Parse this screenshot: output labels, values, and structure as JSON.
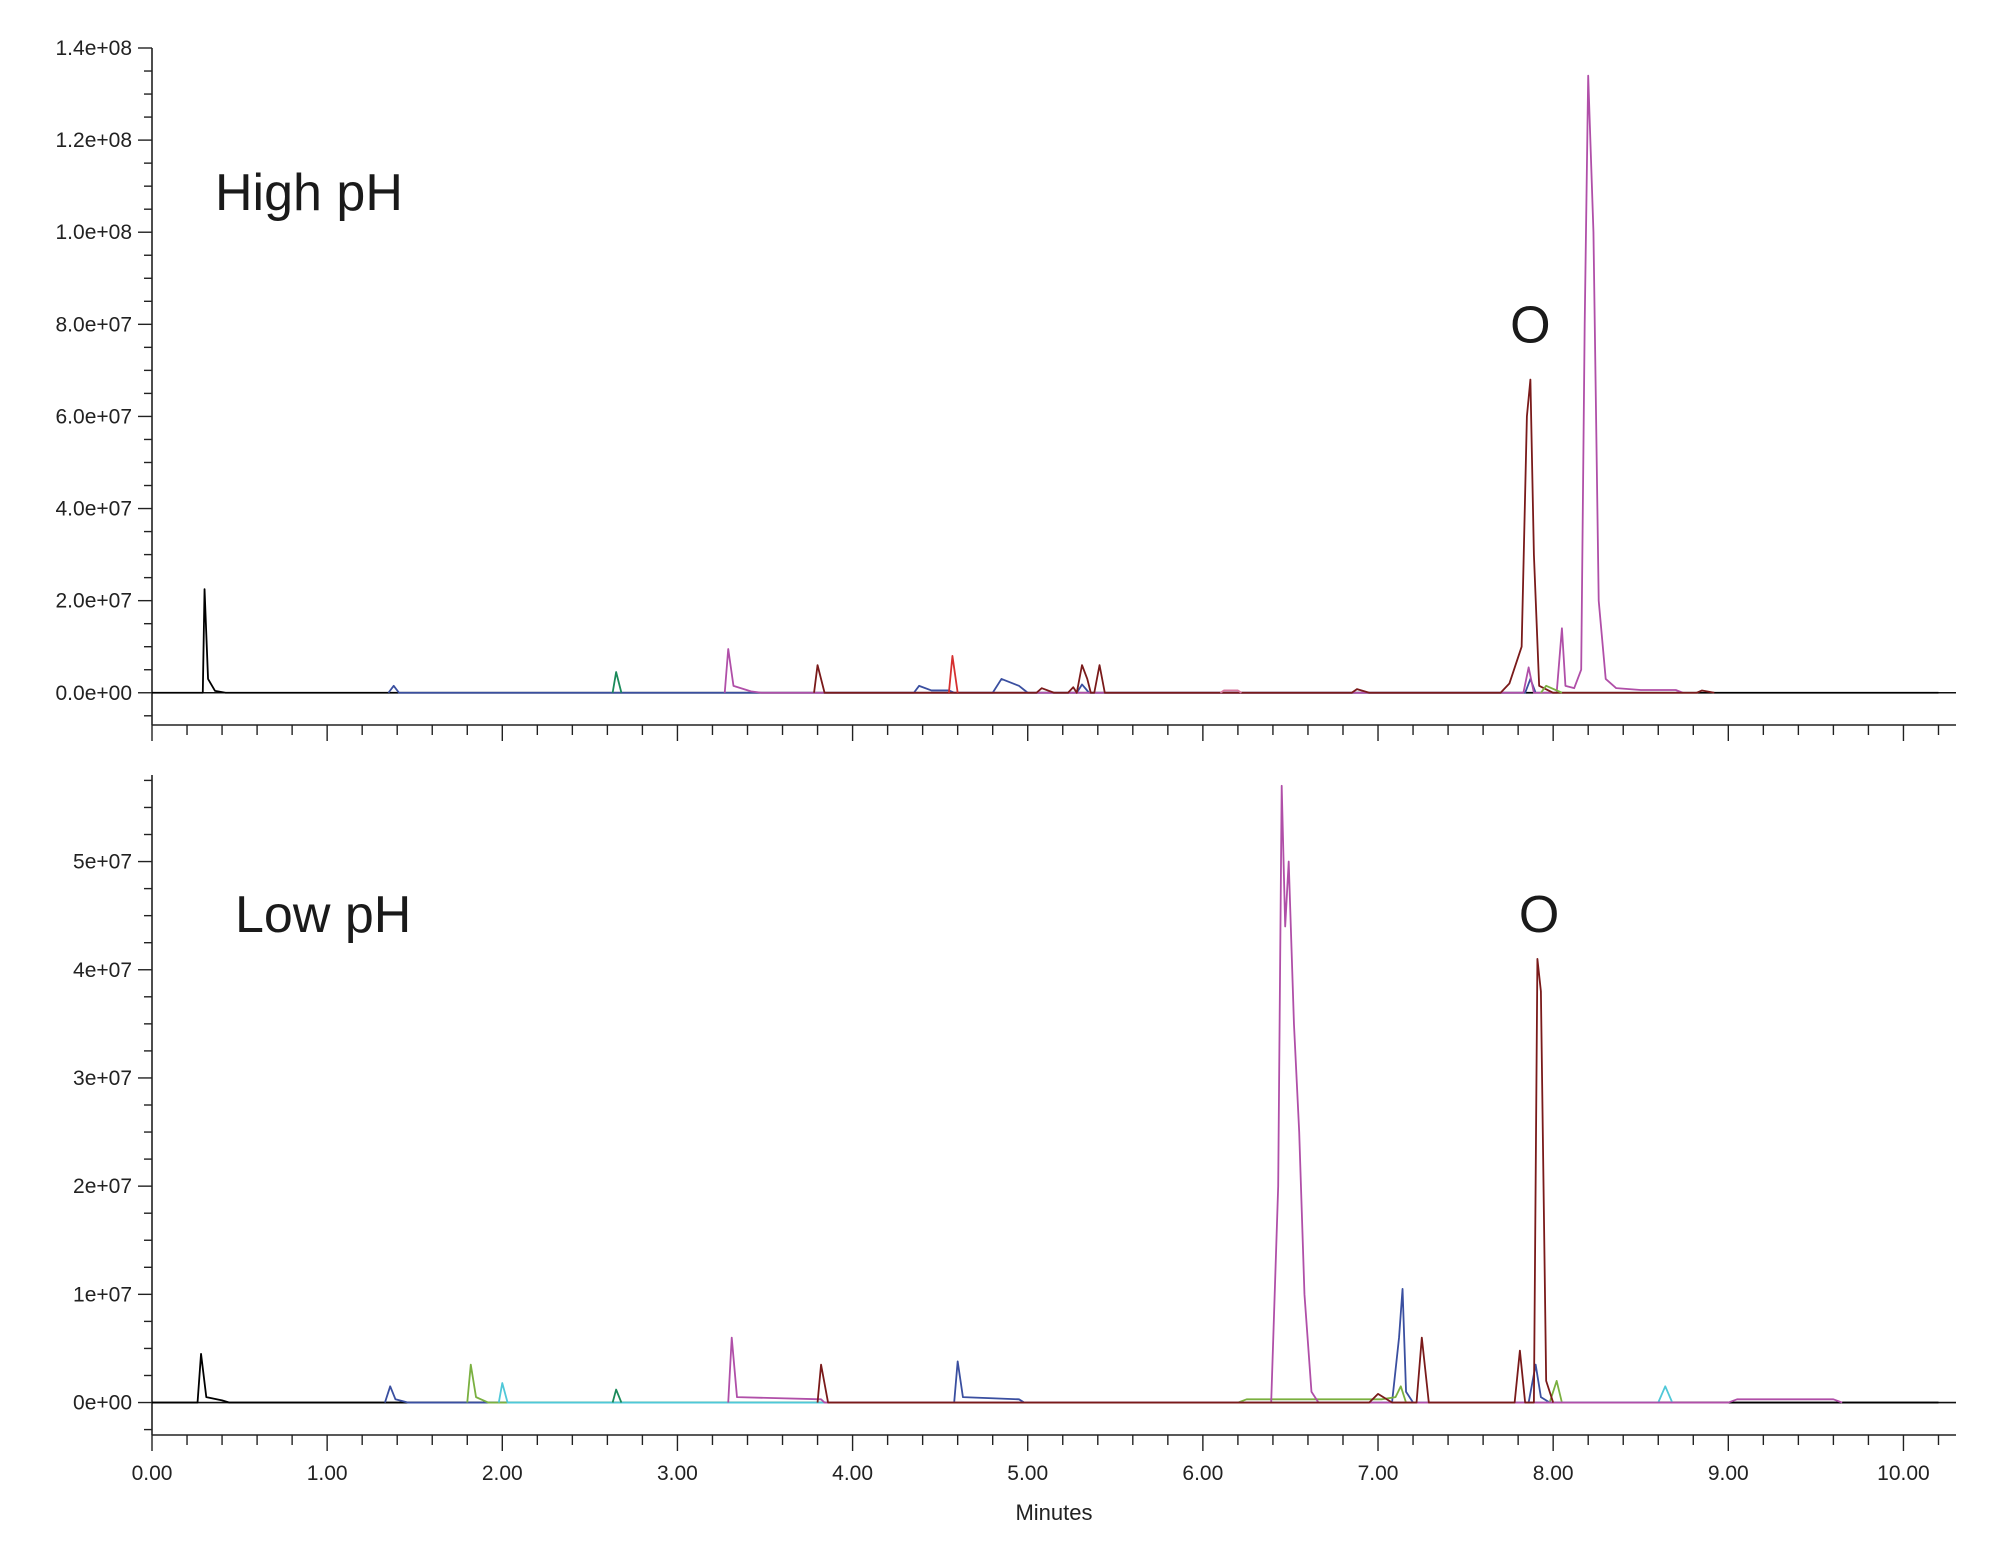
{
  "chart_data": [
    {
      "type": "line",
      "panel_label": "High pH",
      "ylim": [
        -7000000,
        140000000
      ],
      "y_ticks": [
        0,
        20000000,
        40000000,
        60000000,
        80000000,
        100000000,
        120000000,
        140000000
      ],
      "y_tick_labels": [
        "0.0e+00",
        "2.0e+07",
        "4.0e+07",
        "6.0e+07",
        "8.0e+07",
        "1.0e+08",
        "1.2e+08",
        "1.4e+08"
      ],
      "xlim": [
        0,
        10.3
      ],
      "annotations": [
        {
          "text": "O",
          "x": 7.87,
          "y": 76000000
        }
      ],
      "series": [
        {
          "color": "#000000",
          "points": [
            [
              0,
              0
            ],
            [
              0.29,
              0
            ],
            [
              0.3,
              22500000
            ],
            [
              0.32,
              3000000
            ],
            [
              0.36,
              400000
            ],
            [
              0.42,
              0
            ],
            [
              10.2,
              0
            ]
          ]
        },
        {
          "color": "#3a4fa0",
          "points": [
            [
              1.35,
              0
            ],
            [
              1.38,
              1500000
            ],
            [
              1.41,
              0
            ],
            [
              4.35,
              0
            ],
            [
              4.38,
              1500000
            ],
            [
              4.45,
              500000
            ],
            [
              4.55,
              500000
            ],
            [
              4.58,
              0
            ],
            [
              4.8,
              0
            ],
            [
              4.85,
              3000000
            ],
            [
              4.95,
              1500000
            ],
            [
              5.0,
              0
            ],
            [
              5.28,
              0
            ],
            [
              5.31,
              1800000
            ],
            [
              5.35,
              0
            ],
            [
              7.84,
              0
            ],
            [
              7.87,
              3000000
            ],
            [
              7.9,
              0
            ]
          ]
        },
        {
          "color": "#1a8a5a",
          "points": [
            [
              2.63,
              0
            ],
            [
              2.65,
              4500000
            ],
            [
              2.68,
              0
            ]
          ]
        },
        {
          "color": "#b04fa8",
          "points": [
            [
              3.27,
              0
            ],
            [
              3.29,
              9500000
            ],
            [
              3.32,
              1500000
            ],
            [
              3.42,
              300000
            ],
            [
              3.48,
              0
            ],
            [
              7.83,
              0
            ],
            [
              7.86,
              5500000
            ],
            [
              7.89,
              0
            ],
            [
              8.02,
              0
            ],
            [
              8.05,
              14000000
            ],
            [
              8.07,
              1500000
            ],
            [
              8.12,
              1000000
            ],
            [
              8.16,
              5000000
            ],
            [
              8.18,
              80000000
            ],
            [
              8.2,
              134000000
            ],
            [
              8.23,
              100000000
            ],
            [
              8.26,
              20000000
            ],
            [
              8.3,
              3000000
            ],
            [
              8.36,
              1000000
            ],
            [
              8.5,
              600000
            ],
            [
              8.7,
              600000
            ],
            [
              8.74,
              0
            ]
          ]
        },
        {
          "color": "#7a1a1a",
          "points": [
            [
              3.78,
              0
            ],
            [
              3.8,
              6000000
            ],
            [
              3.84,
              0
            ],
            [
              5.05,
              0
            ],
            [
              5.08,
              1000000
            ],
            [
              5.15,
              0
            ],
            [
              5.23,
              0
            ],
            [
              5.26,
              1200000
            ],
            [
              5.28,
              0
            ],
            [
              5.31,
              6000000
            ],
            [
              5.34,
              3000000
            ],
            [
              5.36,
              0
            ],
            [
              5.38,
              0
            ],
            [
              5.41,
              6000000
            ],
            [
              5.44,
              0
            ],
            [
              6.85,
              0
            ],
            [
              6.88,
              800000
            ],
            [
              6.95,
              0
            ],
            [
              7.7,
              0
            ],
            [
              7.75,
              2000000
            ],
            [
              7.82,
              10000000
            ],
            [
              7.85,
              60000000
            ],
            [
              7.87,
              68000000
            ],
            [
              7.89,
              30000000
            ],
            [
              7.92,
              1500000
            ],
            [
              8.0,
              0
            ],
            [
              8.82,
              0
            ],
            [
              8.85,
              500000
            ],
            [
              8.92,
              0
            ]
          ]
        },
        {
          "color": "#d63030",
          "points": [
            [
              4.55,
              0
            ],
            [
              4.57,
              8000000
            ],
            [
              4.6,
              0
            ]
          ]
        },
        {
          "color": "#d87aa0",
          "points": [
            [
              6.1,
              0
            ],
            [
              6.12,
              500000
            ],
            [
              6.2,
              500000
            ],
            [
              6.22,
              0
            ]
          ]
        },
        {
          "color": "#7ab040",
          "points": [
            [
              7.93,
              0
            ],
            [
              7.96,
              1500000
            ],
            [
              8.05,
              0
            ]
          ]
        }
      ]
    },
    {
      "type": "line",
      "panel_label": "Low pH",
      "ylim": [
        -3000000,
        58000000
      ],
      "y_ticks": [
        0,
        10000000,
        20000000,
        30000000,
        40000000,
        50000000
      ],
      "y_tick_labels": [
        "0e+00",
        "1e+07",
        "2e+07",
        "3e+07",
        "4e+07",
        "5e+07"
      ],
      "xlim": [
        0,
        10.3
      ],
      "x_ticks": [
        0,
        1,
        2,
        3,
        4,
        5,
        6,
        7,
        8,
        9,
        10
      ],
      "x_tick_labels": [
        "0.00",
        "1.00",
        "2.00",
        "3.00",
        "4.00",
        "5.00",
        "6.00",
        "7.00",
        "8.00",
        "9.00",
        "10.00"
      ],
      "xlabel": "Minutes",
      "annotations": [
        {
          "text": "O",
          "x": 7.92,
          "y": 43500000
        }
      ],
      "series": [
        {
          "color": "#000000",
          "points": [
            [
              0,
              0
            ],
            [
              0.26,
              0
            ],
            [
              0.28,
              4500000
            ],
            [
              0.31,
              500000
            ],
            [
              0.4,
              200000
            ],
            [
              0.44,
              0
            ],
            [
              10.2,
              0
            ]
          ]
        },
        {
          "color": "#3a4fa0",
          "points": [
            [
              1.33,
              0
            ],
            [
              1.36,
              1500000
            ],
            [
              1.39,
              300000
            ],
            [
              1.46,
              0
            ],
            [
              4.58,
              0
            ],
            [
              4.6,
              3800000
            ],
            [
              4.63,
              500000
            ],
            [
              4.95,
              300000
            ],
            [
              4.98,
              0
            ],
            [
              7.08,
              0
            ],
            [
              7.12,
              6000000
            ],
            [
              7.14,
              10500000
            ],
            [
              7.16,
              1000000
            ],
            [
              7.2,
              0
            ],
            [
              7.86,
              0
            ],
            [
              7.9,
              3500000
            ],
            [
              7.93,
              500000
            ],
            [
              7.98,
              0
            ]
          ]
        },
        {
          "color": "#7ab040",
          "points": [
            [
              1.8,
              0
            ],
            [
              1.82,
              3500000
            ],
            [
              1.85,
              500000
            ],
            [
              1.92,
              0
            ],
            [
              6.2,
              0
            ],
            [
              6.25,
              300000
            ],
            [
              7.02,
              300000
            ],
            [
              7.1,
              500000
            ],
            [
              7.13,
              1500000
            ],
            [
              7.16,
              0
            ],
            [
              7.98,
              0
            ],
            [
              8.02,
              2000000
            ],
            [
              8.05,
              0
            ]
          ]
        },
        {
          "color": "#4fc8d8",
          "points": [
            [
              1.98,
              0
            ],
            [
              2.0,
              1800000
            ],
            [
              2.03,
              0
            ],
            [
              8.6,
              0
            ],
            [
              8.64,
              1500000
            ],
            [
              8.68,
              0
            ]
          ]
        },
        {
          "color": "#1a8a5a",
          "points": [
            [
              2.63,
              0
            ],
            [
              2.65,
              1200000
            ],
            [
              2.68,
              0
            ]
          ]
        },
        {
          "color": "#b04fa8",
          "points": [
            [
              3.29,
              0
            ],
            [
              3.31,
              6000000
            ],
            [
              3.34,
              500000
            ],
            [
              3.82,
              300000
            ],
            [
              3.84,
              0
            ],
            [
              6.39,
              0
            ],
            [
              6.43,
              20000000
            ],
            [
              6.45,
              57000000
            ],
            [
              6.47,
              44000000
            ],
            [
              6.49,
              50000000
            ],
            [
              6.52,
              35000000
            ],
            [
              6.55,
              25000000
            ],
            [
              6.58,
              10000000
            ],
            [
              6.62,
              1000000
            ],
            [
              6.66,
              0
            ],
            [
              9.0,
              0
            ],
            [
              9.05,
              300000
            ],
            [
              9.6,
              300000
            ],
            [
              9.65,
              0
            ]
          ]
        },
        {
          "color": "#7a1a1a",
          "points": [
            [
              3.8,
              0
            ],
            [
              3.82,
              3500000
            ],
            [
              3.86,
              0
            ],
            [
              6.95,
              0
            ],
            [
              7.0,
              800000
            ],
            [
              7.08,
              0
            ],
            [
              7.22,
              0
            ],
            [
              7.25,
              6000000
            ],
            [
              7.29,
              0
            ],
            [
              7.78,
              0
            ],
            [
              7.81,
              4800000
            ],
            [
              7.84,
              0
            ],
            [
              7.89,
              0
            ],
            [
              7.91,
              41000000
            ],
            [
              7.93,
              38000000
            ],
            [
              7.96,
              2000000
            ],
            [
              8.0,
              0
            ]
          ]
        }
      ]
    }
  ]
}
